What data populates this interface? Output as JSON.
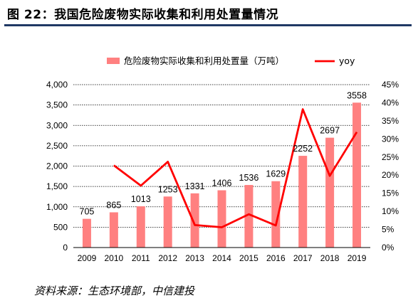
{
  "figure": {
    "title": "图 22：我国危险废物实际收集和利用处置量情况",
    "source": "资料来源：生态环境部，中信建投"
  },
  "chart_data": {
    "type": "bar",
    "categories": [
      "2009",
      "2010",
      "2011",
      "2012",
      "2013",
      "2014",
      "2015",
      "2016",
      "2017",
      "2018",
      "2019"
    ],
    "series": [
      {
        "name": "危险废物实际收集和利用处置量（万吨）",
        "type": "bar",
        "axis": "left",
        "values": [
          705,
          865,
          1013,
          1253,
          1331,
          1406,
          1536,
          1629,
          2252,
          2697,
          3558
        ],
        "color": "#ff8080"
      },
      {
        "name": "yoy",
        "type": "line",
        "axis": "right",
        "values": [
          null,
          22.7,
          17.1,
          23.7,
          6.2,
          5.6,
          9.2,
          6.1,
          38.2,
          19.8,
          31.9
        ],
        "color": "#ff0000"
      }
    ],
    "left_axis": {
      "min": 0,
      "max": 4000,
      "step": 500,
      "tick_labels": [
        "0",
        "500",
        "1,000",
        "1,500",
        "2,000",
        "2,500",
        "3,000",
        "3,500",
        "4,000"
      ]
    },
    "right_axis": {
      "min": 0,
      "max": 45,
      "step": 5,
      "tick_labels": [
        "0%",
        "5%",
        "10%",
        "15%",
        "20%",
        "25%",
        "30%",
        "35%",
        "40%",
        "45%"
      ]
    },
    "grid": "dashed horizontal",
    "legend_position": "top"
  }
}
